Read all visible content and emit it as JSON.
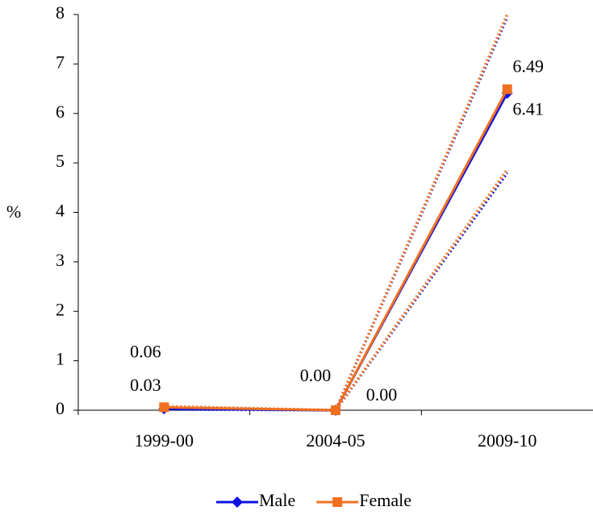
{
  "chart_data": {
    "type": "line",
    "y_label": "%",
    "categories": [
      "1999-00",
      "2004-05",
      "2009-10"
    ],
    "series": [
      {
        "name": "Male",
        "color": "#1010e0",
        "marker": "diamond",
        "values": [
          0.03,
          0,
          6.41
        ],
        "value_labels": [
          "0.03",
          "0.00",
          "6.41"
        ],
        "upper": [
          0.05,
          0,
          7.95
        ],
        "lower": [
          0.02,
          0,
          4.8
        ]
      },
      {
        "name": "Female",
        "color": "#f07020",
        "marker": "square",
        "values": [
          0.06,
          0,
          6.49
        ],
        "value_labels": [
          "0.06",
          "0.00",
          "6.49"
        ],
        "upper": [
          0.08,
          0,
          8.0
        ],
        "lower": [
          0.04,
          0,
          4.87
        ]
      }
    ],
    "ylim": [
      0,
      8
    ],
    "yticks": [
      0,
      1,
      2,
      3,
      4,
      5,
      6,
      7,
      8
    ],
    "grid": false,
    "legend": "bottom"
  }
}
